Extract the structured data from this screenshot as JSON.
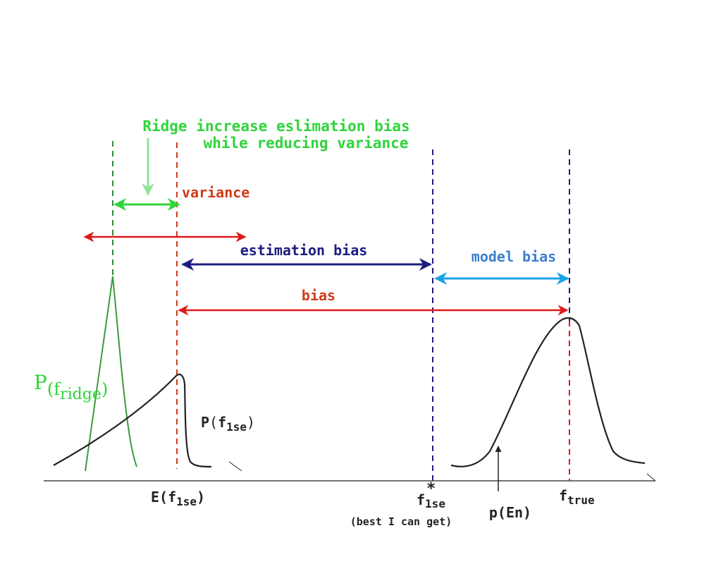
{
  "annotation": {
    "line1": "Ridge increase eslimation bias",
    "line2": "while reducing variance"
  },
  "labels": {
    "variance": "variance",
    "estimation_bias": "estimation bias",
    "model_bias": "model bias",
    "bias": "bias"
  },
  "curves": {
    "ridge_p": "P",
    "ridge_open": "(",
    "ridge_f": "f",
    "ridge_sub": "ridge",
    "ridge_close": ")",
    "lse_p": "P",
    "lse_open": "(",
    "lse_f": "f",
    "lse_sub": "1se",
    "lse_close": ")",
    "en": "p(En)"
  },
  "axis": {
    "e_prefix": "E(",
    "e_f": "f",
    "e_sub": "1se",
    "e_close": ")",
    "star": "*",
    "flse_f": "f",
    "flse_sub": "1se",
    "best": "(best I can get)",
    "ftrue_f": "f",
    "ftrue_sub": "true"
  },
  "colors": {
    "green": "#2fd43a",
    "light_green": "#90e39a",
    "dark_green": "#2e8b3a",
    "red": "#e01818",
    "red_label": "#d13a1a",
    "navy": "#1c1c80",
    "light_blue": "#1aa3e6",
    "blue_label": "#3a7fd0",
    "black": "#222222"
  }
}
